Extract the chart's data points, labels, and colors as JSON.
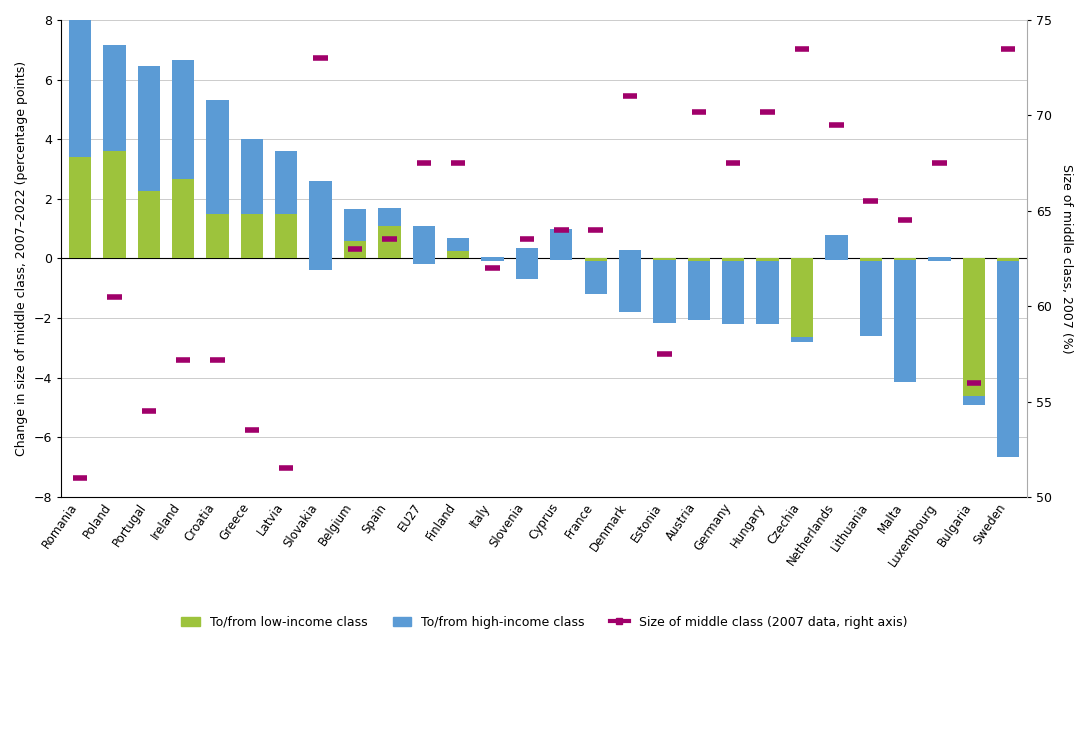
{
  "countries": [
    "Romania",
    "Poland",
    "Portugal",
    "Ireland",
    "Croatia",
    "Greece",
    "Latvia",
    "Slovakia",
    "Belgium",
    "Spain",
    "EU27",
    "Finland",
    "Italy",
    "Slovenia",
    "Cyprus",
    "France",
    "Denmark",
    "Estonia",
    "Austria",
    "Germany",
    "Hungary",
    "Czechia",
    "Netherlands",
    "Lithuania",
    "Malta",
    "Luxembourg",
    "Bulgaria",
    "Sweden"
  ],
  "low_income": [
    3.4,
    3.6,
    2.25,
    2.65,
    1.5,
    1.5,
    1.5,
    -0.4,
    0.6,
    1.1,
    -0.2,
    0.25,
    0.05,
    -0.7,
    -0.05,
    -0.1,
    0.3,
    -0.05,
    -0.1,
    -0.1,
    -0.1,
    -2.8,
    -0.05,
    -0.1,
    -0.05,
    -0.1,
    -4.6,
    -0.1
  ],
  "high_income": [
    4.6,
    3.55,
    4.2,
    4.0,
    3.8,
    2.5,
    2.1,
    3.0,
    1.05,
    0.6,
    1.3,
    0.45,
    -0.15,
    1.05,
    1.05,
    -1.1,
    -2.1,
    -2.1,
    -1.95,
    -2.1,
    -2.1,
    0.15,
    0.85,
    -2.5,
    -4.1,
    0.15,
    -0.3,
    -6.55
  ],
  "middle_class_size": [
    51.0,
    60.5,
    54.5,
    57.2,
    57.2,
    53.5,
    51.5,
    73.0,
    63.0,
    63.5,
    67.5,
    67.5,
    62.0,
    63.5,
    64.0,
    64.0,
    71.0,
    57.5,
    70.2,
    67.5,
    70.2,
    73.5,
    69.5,
    65.5,
    64.5,
    67.5,
    56.0,
    73.5
  ],
  "bar_color_low": "#9DC33C",
  "bar_color_high": "#5B9BD5",
  "dot_color": "#A0006A",
  "ylabel_left": "Change in size of middle class, 2007–2022 (percentage points)",
  "ylabel_right": "Size of middle class, 2007 (%)",
  "ylim_left": [
    -8,
    8
  ],
  "ylim_right": [
    50,
    75
  ],
  "yticks_left": [
    -8,
    -6,
    -4,
    -2,
    0,
    2,
    4,
    6,
    8
  ],
  "yticks_right": [
    50,
    55,
    60,
    65,
    70,
    75
  ],
  "legend_labels": [
    "To/from low-income class",
    "To/from high-income class",
    "Size of middle class (2007 data, right axis)"
  ],
  "background_color": "#FFFFFF",
  "grid_color": "#CCCCCC"
}
